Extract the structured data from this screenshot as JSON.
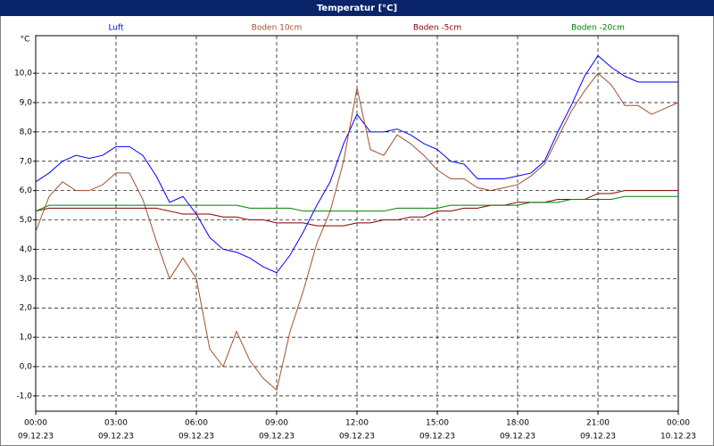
{
  "chart_data": {
    "type": "line",
    "title": "Temperatur [°C]",
    "y_label": "°C",
    "x": [
      0,
      0.5,
      1,
      1.5,
      2,
      2.5,
      3,
      3.5,
      4,
      4.5,
      5,
      5.5,
      6,
      6.5,
      7,
      7.5,
      8,
      8.5,
      9,
      9.5,
      10,
      10.5,
      11,
      11.5,
      12,
      12.5,
      13,
      13.5,
      14,
      14.5,
      15,
      15.5,
      16,
      16.5,
      17,
      17.5,
      18,
      18.5,
      19,
      19.5,
      20,
      20.5,
      21,
      21.5,
      22,
      22.5,
      23,
      23.5,
      24
    ],
    "xlim": [
      0,
      24
    ],
    "xticks": [
      {
        "value": 0,
        "label": "00:00"
      },
      {
        "value": 3,
        "label": "03:00"
      },
      {
        "value": 6,
        "label": "06:00"
      },
      {
        "value": 9,
        "label": "09:00"
      },
      {
        "value": 12,
        "label": "12:00"
      },
      {
        "value": 15,
        "label": "15:00"
      },
      {
        "value": 18,
        "label": "18:00"
      },
      {
        "value": 21,
        "label": "21:00"
      },
      {
        "value": 24,
        "label": "00:00"
      }
    ],
    "xtick_dates": [
      "09.12.23",
      "09.12.23",
      "09.12.23",
      "09.12.23",
      "09.12.23",
      "09.12.23",
      "09.12.23",
      "09.12.23",
      "10.12.23"
    ],
    "ylim": [
      -1.52,
      11.28
    ],
    "yticks": [
      {
        "value": -1,
        "label": "-1,0"
      },
      {
        "value": 0,
        "label": "0,0"
      },
      {
        "value": 1,
        "label": "1,0"
      },
      {
        "value": 2,
        "label": "2,0"
      },
      {
        "value": 3,
        "label": "3,0"
      },
      {
        "value": 4,
        "label": "4,0"
      },
      {
        "value": 5,
        "label": "5,0"
      },
      {
        "value": 6,
        "label": "6,0"
      },
      {
        "value": 7,
        "label": "7,0"
      },
      {
        "value": 8,
        "label": "8,0"
      },
      {
        "value": 9,
        "label": "9,0"
      },
      {
        "value": 10,
        "label": "10,0"
      }
    ],
    "grid": true,
    "series": [
      {
        "name": "Luft",
        "color": "#0000ff",
        "values": [
          6.3,
          6.6,
          7.0,
          7.2,
          7.1,
          7.2,
          7.5,
          7.5,
          7.2,
          6.5,
          5.6,
          5.8,
          5.2,
          4.4,
          4.0,
          3.9,
          3.7,
          3.4,
          3.2,
          3.8,
          4.6,
          5.5,
          6.3,
          7.6,
          8.6,
          8.0,
          8.0,
          8.1,
          7.9,
          7.6,
          7.4,
          7.0,
          6.9,
          6.4,
          6.4,
          6.4,
          6.5,
          6.6,
          7.0,
          8.0,
          8.9,
          9.9,
          10.6,
          10.2,
          9.9,
          9.7,
          9.7,
          9.7,
          9.7
        ]
      },
      {
        "name": "Boden 10cm",
        "color": "#a0522d",
        "values": [
          4.6,
          5.8,
          6.3,
          6.0,
          6.0,
          6.2,
          6.6,
          6.6,
          5.7,
          4.3,
          3.0,
          3.7,
          3.0,
          0.6,
          0.0,
          1.2,
          0.2,
          -0.4,
          -0.8,
          1.2,
          2.6,
          4.2,
          5.3,
          7.0,
          9.5,
          7.4,
          7.2,
          7.9,
          7.6,
          7.2,
          6.7,
          6.4,
          6.4,
          6.1,
          6.0,
          6.1,
          6.2,
          6.5,
          6.9,
          7.8,
          8.7,
          9.4,
          10.0,
          9.6,
          8.9,
          8.9,
          8.6,
          8.8,
          9.0
        ]
      },
      {
        "name": "Boden -5cm",
        "color": "#800000",
        "values": [
          5.3,
          5.4,
          5.4,
          5.4,
          5.4,
          5.4,
          5.4,
          5.4,
          5.4,
          5.4,
          5.3,
          5.2,
          5.2,
          5.2,
          5.1,
          5.1,
          5.0,
          5.0,
          4.9,
          4.9,
          4.9,
          4.8,
          4.8,
          4.8,
          4.9,
          4.9,
          5.0,
          5.0,
          5.1,
          5.1,
          5.3,
          5.3,
          5.4,
          5.4,
          5.5,
          5.5,
          5.6,
          5.6,
          5.6,
          5.7,
          5.7,
          5.7,
          5.9,
          5.9,
          6.0,
          6.0,
          6.0,
          6.0,
          6.0
        ]
      },
      {
        "name": "Boden -20cm",
        "color": "#008000",
        "values": [
          5.3,
          5.5,
          5.5,
          5.5,
          5.5,
          5.5,
          5.5,
          5.5,
          5.5,
          5.5,
          5.5,
          5.5,
          5.5,
          5.5,
          5.5,
          5.5,
          5.4,
          5.4,
          5.4,
          5.4,
          5.3,
          5.3,
          5.3,
          5.3,
          5.3,
          5.3,
          5.3,
          5.4,
          5.4,
          5.4,
          5.4,
          5.5,
          5.5,
          5.5,
          5.5,
          5.5,
          5.5,
          5.6,
          5.6,
          5.6,
          5.7,
          5.7,
          5.7,
          5.7,
          5.8,
          5.8,
          5.8,
          5.8,
          5.8
        ]
      }
    ]
  }
}
